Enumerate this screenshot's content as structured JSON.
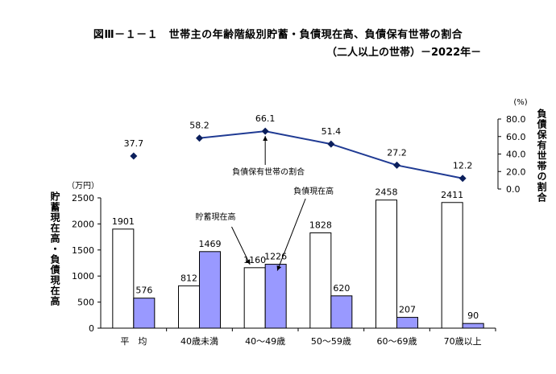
{
  "title": "図Ⅲ－１－１　世帯主の年齢階級別貯蓄・負債現在高、負債保有世帯の割合",
  "subtitle": "（二人以上の世帯）－2022年－",
  "chart_data": [
    {
      "type": "bar",
      "categories": [
        "平　均",
        "40歳未満",
        "40～49歳",
        "50～59歳",
        "60～69歳",
        "70歳以上"
      ],
      "series": [
        {
          "name": "貯蓄現在高",
          "values": [
            1901,
            812,
            1160,
            1828,
            2458,
            2411
          ],
          "color": "#ffffff"
        },
        {
          "name": "負債現在高",
          "values": [
            576,
            1469,
            1226,
            620,
            207,
            90
          ],
          "color": "#9999ff"
        }
      ],
      "ylabel": "貯蓄現在高・負債現在高",
      "yunit": "（万円）",
      "ylim": [
        0,
        2500
      ],
      "yticks": [
        "0",
        "500",
        "1000",
        "1500",
        "2000",
        "2500"
      ],
      "grid": false
    },
    {
      "type": "line",
      "categories": [
        "平　均",
        "40歳未満",
        "40～49歳",
        "50～59歳",
        "60～69歳",
        "70歳以上"
      ],
      "series": [
        {
          "name": "負債保有世帯の割合",
          "values": [
            37.7,
            58.2,
            66.1,
            51.4,
            27.2,
            12.2
          ],
          "labels": [
            "37.7",
            "58.2",
            "66.1",
            "51.4",
            "27.2",
            "12.2"
          ],
          "color": "#1f3a93"
        }
      ],
      "ylabel": "負債保有世帯の割合",
      "yunit": "(%)",
      "ylim": [
        0,
        80
      ],
      "yticks": [
        "0.0",
        "20.0",
        "40.0",
        "60.0",
        "80.0"
      ]
    }
  ],
  "annotations": {
    "savings": "貯蓄現在高",
    "debt": "負債現在高",
    "ratio": "負債保有世帯の割合"
  }
}
